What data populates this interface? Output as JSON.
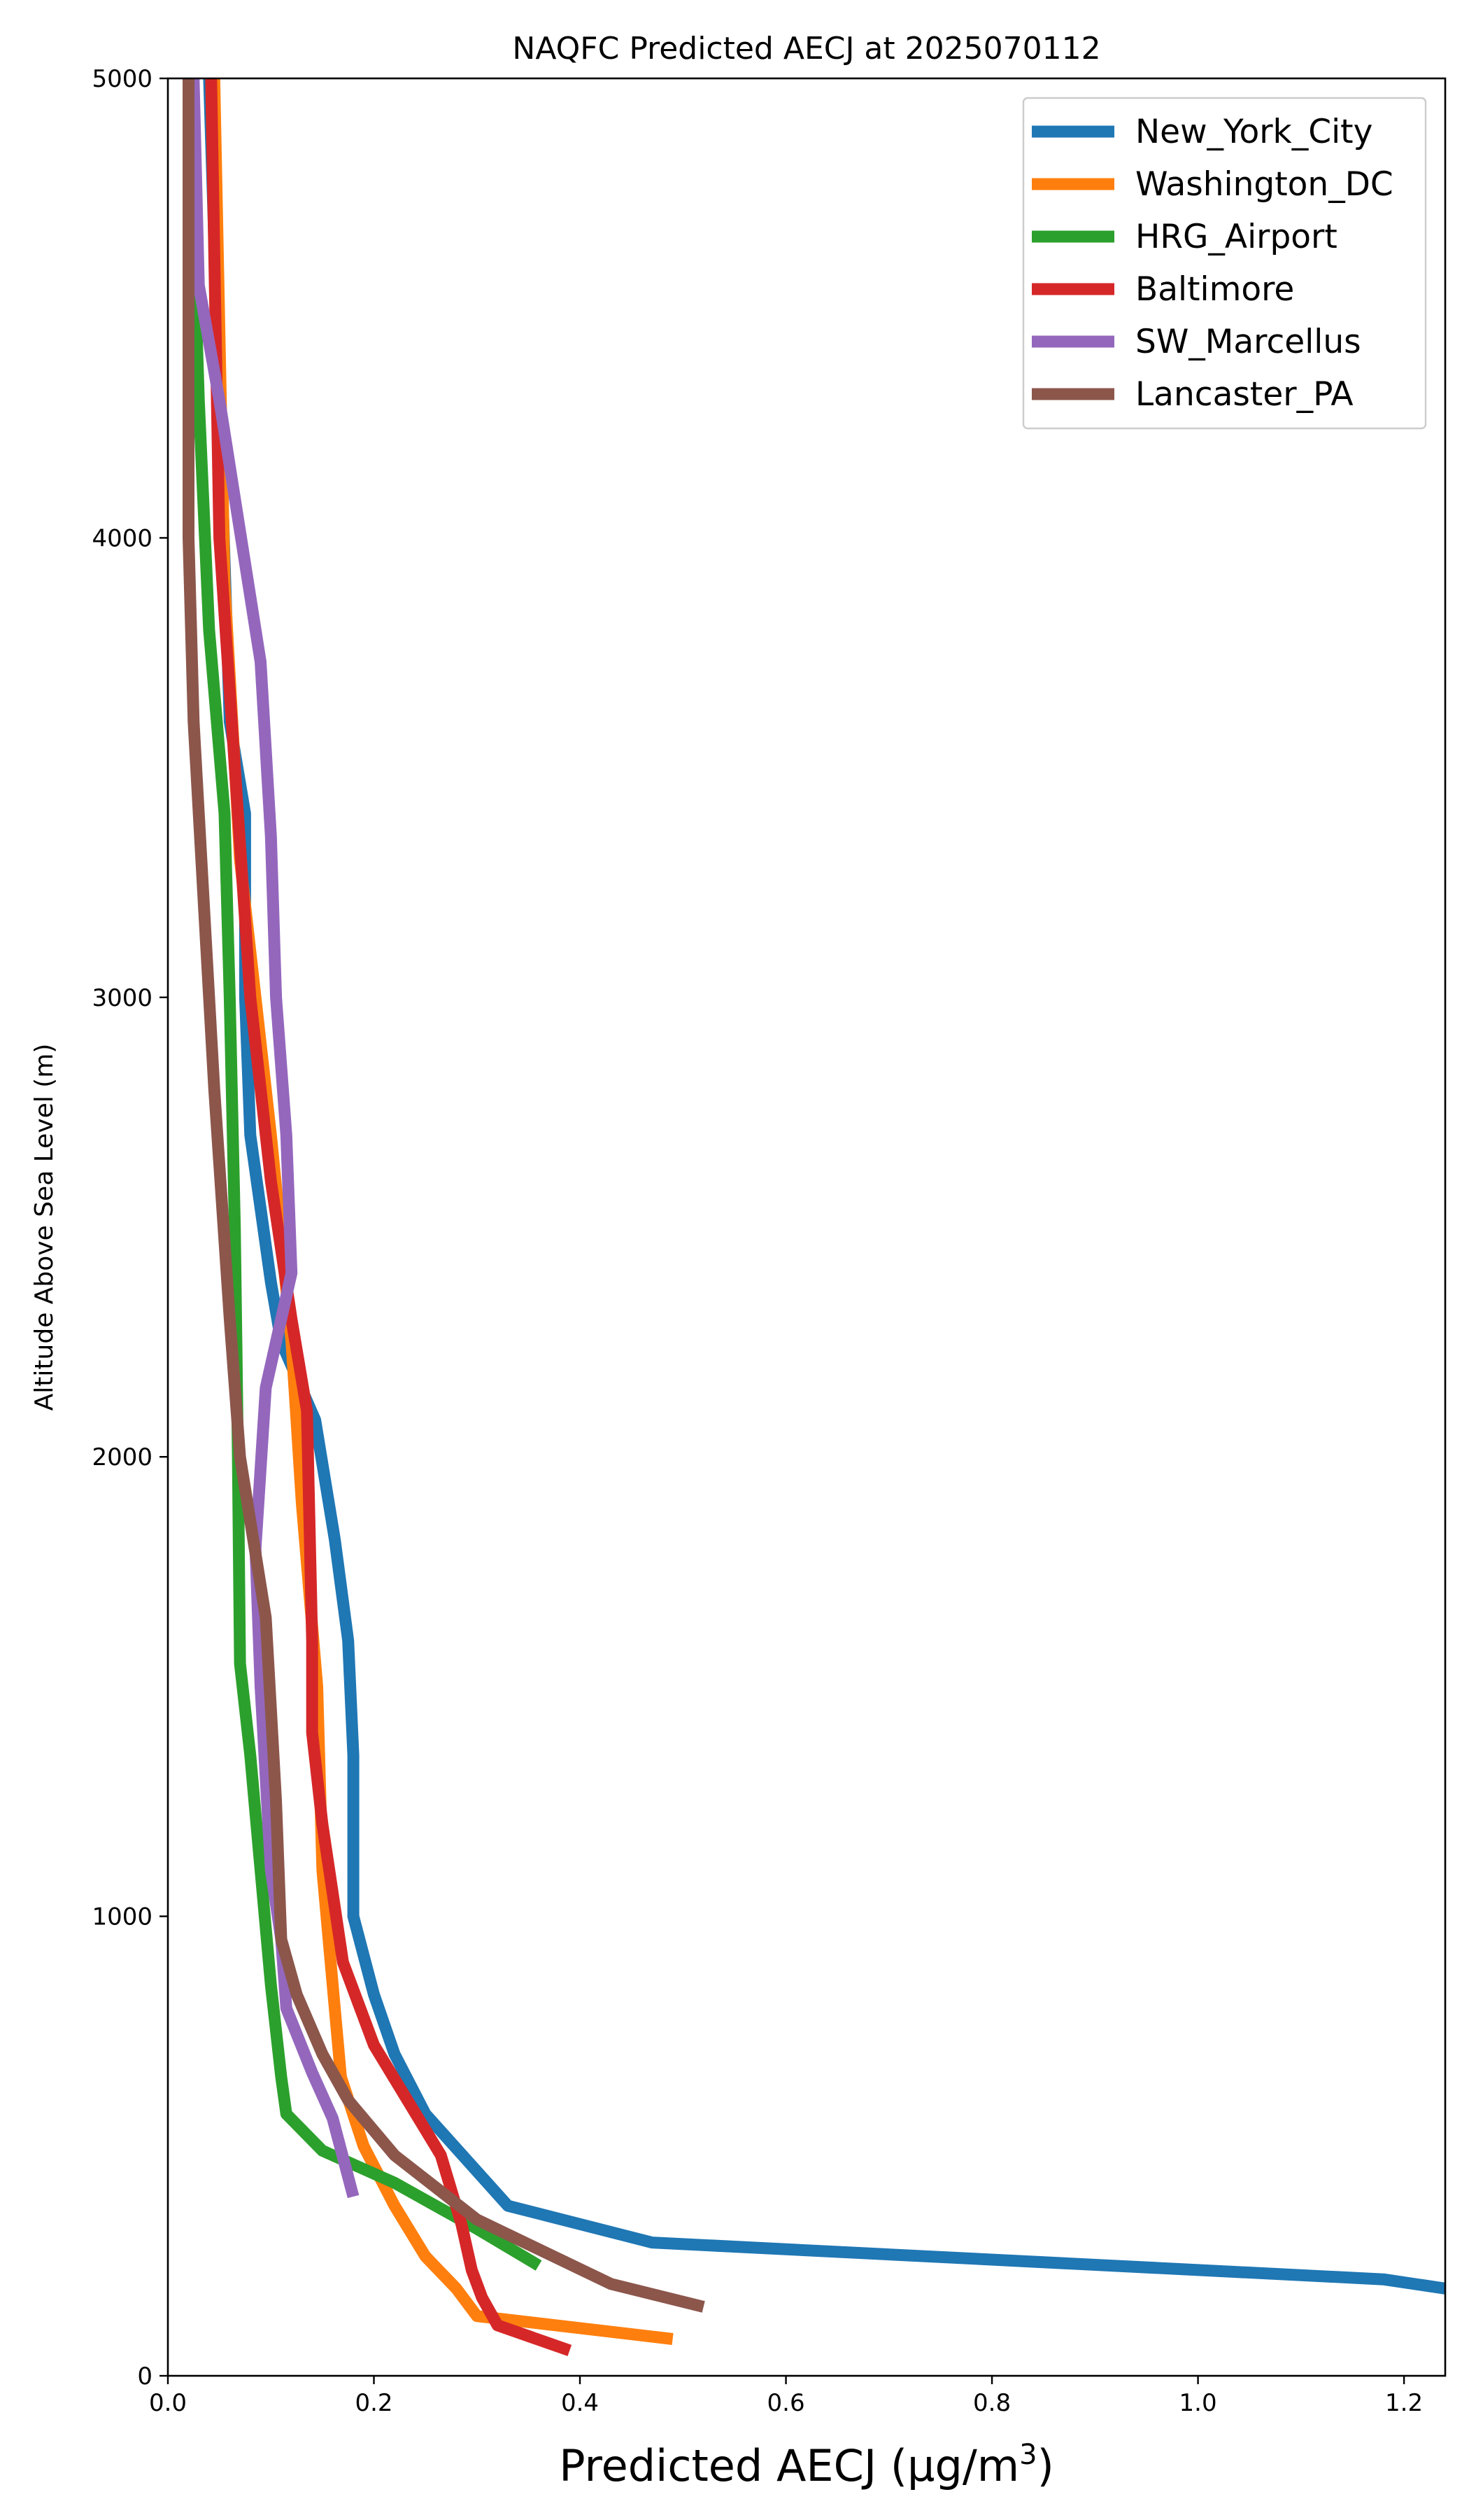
{
  "chart_data": {
    "type": "line",
    "title": "NAQFC Predicted AECJ at 2025070112",
    "xlabel": "Predicted AECJ (μg/m",
    "xlabel_sup": "3",
    "xlabel_tail": ")",
    "ylabel": "Altitude Above Sea Level (m)",
    "xlim": [
      0.0,
      1.24
    ],
    "ylim": [
      0,
      5000
    ],
    "x_ticks": [
      0.0,
      0.2,
      0.4,
      0.6,
      0.8,
      1.0,
      1.2
    ],
    "x_tick_labels": [
      "0.0",
      "0.2",
      "0.4",
      "0.6",
      "0.8",
      "1.0",
      "1.2"
    ],
    "y_ticks": [
      0,
      1000,
      2000,
      3000,
      4000,
      5000
    ],
    "y_tick_labels": [
      "0",
      "1000",
      "2000",
      "3000",
      "4000",
      "5000"
    ],
    "grid": false,
    "legend_position": "top-right",
    "series": [
      {
        "name": "New_York_City",
        "color": "#1f77b4",
        "points": [
          [
            1.24,
            190
          ],
          [
            1.18,
            210
          ],
          [
            0.47,
            290
          ],
          [
            0.33,
            370
          ],
          [
            0.25,
            570
          ],
          [
            0.22,
            700
          ],
          [
            0.2,
            830
          ],
          [
            0.18,
            1000
          ],
          [
            0.18,
            1350
          ],
          [
            0.175,
            1600
          ],
          [
            0.162,
            1820
          ],
          [
            0.143,
            2080
          ],
          [
            0.11,
            2250
          ],
          [
            0.1,
            2380
          ],
          [
            0.08,
            2700
          ],
          [
            0.075,
            3000
          ],
          [
            0.075,
            3400
          ],
          [
            0.06,
            3600
          ],
          [
            0.04,
            5000
          ]
        ]
      },
      {
        "name": "Washington_DC",
        "color": "#ff7f0e",
        "points": [
          [
            0.49,
            80
          ],
          [
            0.3,
            130
          ],
          [
            0.28,
            190
          ],
          [
            0.25,
            260
          ],
          [
            0.22,
            370
          ],
          [
            0.19,
            500
          ],
          [
            0.168,
            650
          ],
          [
            0.16,
            850
          ],
          [
            0.15,
            1100
          ],
          [
            0.145,
            1500
          ],
          [
            0.13,
            1900
          ],
          [
            0.12,
            2250
          ],
          [
            0.1,
            2700
          ],
          [
            0.085,
            3000
          ],
          [
            0.07,
            3300
          ],
          [
            0.055,
            3900
          ],
          [
            0.045,
            5000
          ]
        ]
      },
      {
        "name": "HRG_Airport",
        "color": "#2ca02c",
        "points": [
          [
            0.36,
            240
          ],
          [
            0.3,
            320
          ],
          [
            0.22,
            420
          ],
          [
            0.15,
            490
          ],
          [
            0.115,
            570
          ],
          [
            0.11,
            650
          ],
          [
            0.1,
            850
          ],
          [
            0.09,
            1100
          ],
          [
            0.08,
            1350
          ],
          [
            0.07,
            1550
          ],
          [
            0.068,
            2000
          ],
          [
            0.065,
            2500
          ],
          [
            0.06,
            3000
          ],
          [
            0.055,
            3400
          ],
          [
            0.04,
            3800
          ],
          [
            0.03,
            4300
          ],
          [
            0.02,
            5000
          ]
        ]
      },
      {
        "name": "Baltimore",
        "color": "#d62728",
        "points": [
          [
            0.39,
            55
          ],
          [
            0.32,
            110
          ],
          [
            0.305,
            170
          ],
          [
            0.295,
            230
          ],
          [
            0.285,
            330
          ],
          [
            0.265,
            480
          ],
          [
            0.2,
            720
          ],
          [
            0.17,
            900
          ],
          [
            0.15,
            1200
          ],
          [
            0.14,
            1400
          ],
          [
            0.14,
            1600
          ],
          [
            0.135,
            2100
          ],
          [
            0.12,
            2300
          ],
          [
            0.1,
            2600
          ],
          [
            0.08,
            3000
          ],
          [
            0.065,
            3500
          ],
          [
            0.05,
            4000
          ],
          [
            0.042,
            5000
          ]
        ]
      },
      {
        "name": "SW_Marcellus",
        "color": "#9467bd",
        "points": [
          [
            0.18,
            390
          ],
          [
            0.16,
            560
          ],
          [
            0.14,
            660
          ],
          [
            0.115,
            800
          ],
          [
            0.11,
            950
          ],
          [
            0.1,
            1100
          ],
          [
            0.09,
            1500
          ],
          [
            0.085,
            1800
          ],
          [
            0.095,
            2150
          ],
          [
            0.12,
            2400
          ],
          [
            0.115,
            2700
          ],
          [
            0.105,
            3000
          ],
          [
            0.1,
            3350
          ],
          [
            0.09,
            3730
          ],
          [
            0.05,
            4300
          ],
          [
            0.03,
            4550
          ],
          [
            0.025,
            5000
          ]
        ]
      },
      {
        "name": "Lancaster_PA",
        "color": "#8c564b",
        "points": [
          [
            0.52,
            150
          ],
          [
            0.43,
            200
          ],
          [
            0.3,
            340
          ],
          [
            0.22,
            480
          ],
          [
            0.175,
            600
          ],
          [
            0.15,
            700
          ],
          [
            0.125,
            830
          ],
          [
            0.11,
            950
          ],
          [
            0.105,
            1250
          ],
          [
            0.1,
            1450
          ],
          [
            0.095,
            1650
          ],
          [
            0.07,
            2000
          ],
          [
            0.06,
            2300
          ],
          [
            0.045,
            2800
          ],
          [
            0.035,
            3200
          ],
          [
            0.025,
            3600
          ],
          [
            0.02,
            4000
          ],
          [
            0.02,
            5000
          ]
        ]
      }
    ]
  }
}
